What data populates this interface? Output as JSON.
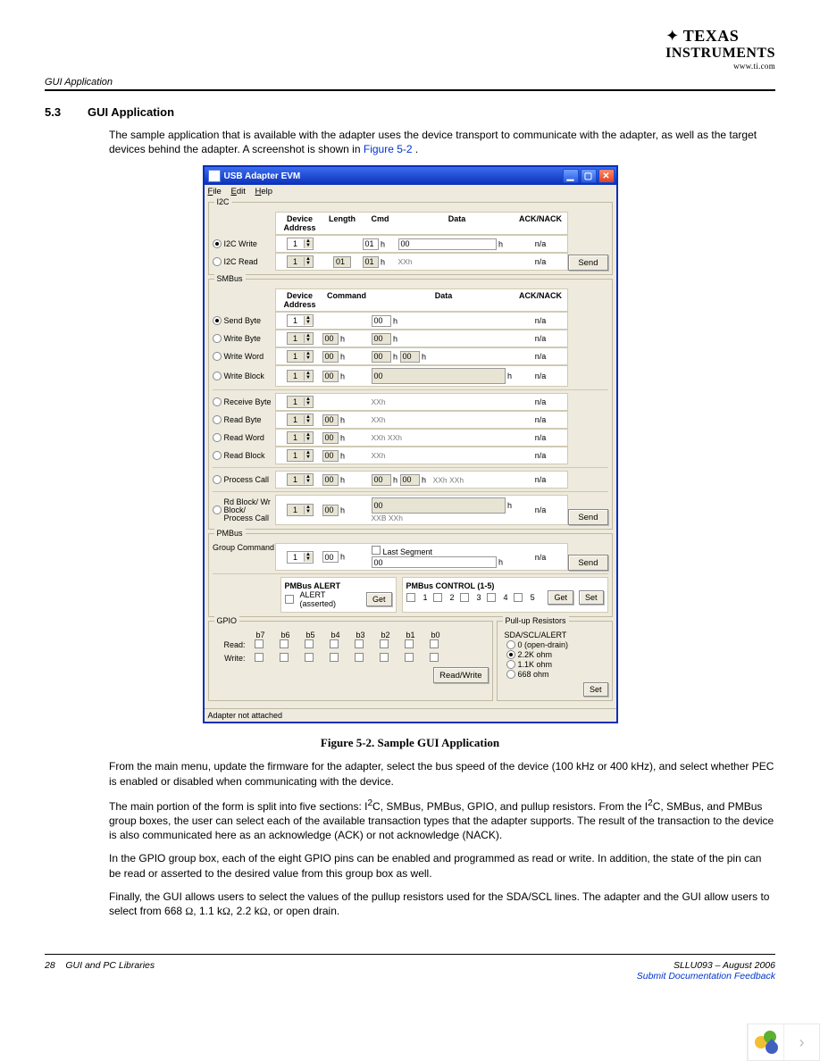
{
  "logo": {
    "line1": "TEXAS",
    "line2": "INSTRUMENTS",
    "url": "www.ti.com"
  },
  "running_head": "GUI Application",
  "section": {
    "number": "5.3",
    "title": "GUI Application"
  },
  "para1": "The sample application that is available with the adapter uses the device transport to communicate with the adapter, as well as the target devices behind the adapter. A screenshot is shown in ",
  "figref": "Figure 5-2",
  "caption": "Figure 5-2. Sample GUI Application",
  "para2": "From the main menu, update the firmware for the adapter, select the bus speed of the device (100 kHz or 400 kHz), and select whether PEC is enabled or disabled when communicating with the device.",
  "para3a": "The main portion of the form is split into five sections: I",
  "para3b": "C, SMBus, PMBus, GPIO, and pullup resistors. From the I",
  "para3c": "C, SMBus, and PMBus group boxes, the user can select each of the available transaction types that the adapter supports. The result of the transaction to the device is also communicated here as an acknowledge (ACK) or not acknowledge (NACK).",
  "sup2": "2",
  "para4": "In the GPIO group box, each of the eight GPIO pins can be enabled and programmed as read or write. In addition, the state of the pin can be read or asserted to the desired value from this group box as well.",
  "para5a": "Finally, the GUI allows users to select the values of the pullup resistors used for the SDA/SCL lines. The adapter and the GUI allow users to select from 668 ",
  "para5b": ", 1.1 k",
  "para5c": ", 2.2 k",
  "para5d": ", or open drain.",
  "omega": "Ω",
  "footer": {
    "page": "28",
    "chapter": "GUI and PC Libraries",
    "docid": "SLLU093 – August 2006",
    "feedback": "Submit Documentation Feedback"
  },
  "shot": {
    "title": "USB Adapter EVM",
    "menus": [
      "File",
      "Edit",
      "Help"
    ],
    "status": "Adapter not attached",
    "send": "Send",
    "get": "Get",
    "set": "Set",
    "readwrite": "Read/Write",
    "i2c": {
      "group": "I2C",
      "hdr": [
        "Device Address",
        "Length",
        "Cmd",
        "Data",
        "ACK/NACK"
      ],
      "rows": [
        {
          "label": "I2C Write",
          "addr": "1",
          "len": "",
          "cmd": "01",
          "data": "00",
          "ack": "n/a",
          "selected": true
        },
        {
          "label": "I2C Read",
          "addr": "1",
          "len": "01",
          "cmd": "01",
          "data": "XXh",
          "ack": "n/a",
          "selected": false
        }
      ]
    },
    "smbus": {
      "group": "SMBus",
      "hdr": [
        "Device Address",
        "Command",
        "Data",
        "ACK/NACK"
      ],
      "rows": [
        {
          "label": "Send Byte",
          "addr": "1",
          "cmd": "",
          "d1": "00",
          "unit": "h",
          "ack": "n/a",
          "selected": true
        },
        {
          "label": "Write Byte",
          "addr": "1",
          "cmd": "00",
          "d1": "00",
          "unit": "h",
          "ack": "n/a"
        },
        {
          "label": "Write Word",
          "addr": "1",
          "cmd": "00",
          "d1": "00",
          "d2": "00",
          "unit": "h",
          "ack": "n/a"
        },
        {
          "label": "Write Block",
          "addr": "1",
          "cmd": "00",
          "block": "00",
          "unit": "h",
          "ack": "n/a"
        },
        {
          "label": "Receive Byte",
          "addr": "1",
          "cmd": "",
          "data": "XXh",
          "ack": "n/a"
        },
        {
          "label": "Read Byte",
          "addr": "1",
          "cmd": "00",
          "data": "XXh",
          "ack": "n/a"
        },
        {
          "label": "Read Word",
          "addr": "1",
          "cmd": "00",
          "data": "XXh   XXh",
          "ack": "n/a"
        },
        {
          "label": "Read Block",
          "addr": "1",
          "cmd": "00",
          "data": "XXh",
          "ack": "n/a"
        },
        {
          "label": "Process Call",
          "addr": "1",
          "cmd": "00",
          "d1": "00",
          "d2": "00",
          "tail": "XXh   XXh",
          "ack": "n/a"
        },
        {
          "label": "Rd Block/ Wr Block/ Process Call",
          "addr": "1",
          "cmd": "00",
          "block": "00",
          "data2": "XXB   XXh",
          "ack": "n/a"
        }
      ]
    },
    "pmbus": {
      "group": "PMBus",
      "grpcmd_label": "Group Command",
      "addr": "1",
      "cmd": "00",
      "lastseg": "Last Segment",
      "data": "00",
      "ack": "n/a",
      "alert_title": "PMBus ALERT",
      "alert_label": "ALERT (asserted)",
      "ctrl_title": "PMBus CONTROL (1-5)",
      "ctrl": [
        "1",
        "2",
        "3",
        "4",
        "5"
      ]
    },
    "gpio": {
      "group": "GPIO",
      "bits": [
        "b7",
        "b6",
        "b5",
        "b4",
        "b3",
        "b2",
        "b1",
        "b0"
      ],
      "read": "Read:",
      "write": "Write:"
    },
    "pullup": {
      "group": "Pull-up Resistors",
      "sub": "SDA/SCL/ALERT",
      "opts": [
        "0 (open-drain)",
        "2.2K ohm",
        "1.1K ohm",
        "668 ohm"
      ],
      "selected": 1
    }
  },
  "colors": {
    "page_bg": "#ffffff",
    "win_frame": "#0a2fb8",
    "win_bg": "#eeeadd",
    "panel_white": "#ffffff",
    "border": "#bfb8a2",
    "link": "#0033cc"
  }
}
